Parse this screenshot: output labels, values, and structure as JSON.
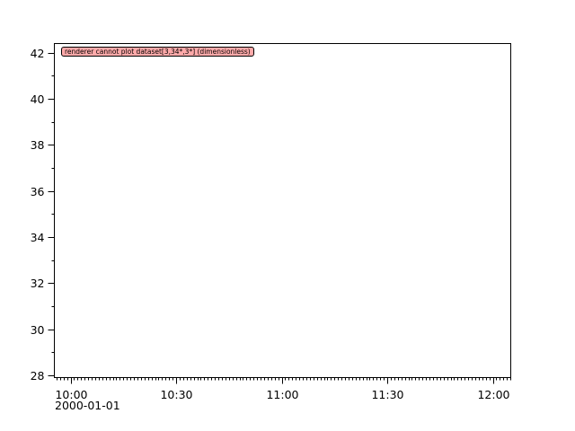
{
  "chart_data": {
    "type": "line",
    "series": [],
    "message": "renderer cannot plot dataset[3,34*,3*] (dimensionless)",
    "xaxis": {
      "range": [
        "09:55:24",
        "12:05:06"
      ],
      "date_label": "2000-01-01",
      "tick_labels": [
        "10:00",
        "10:30",
        "11:00",
        "11:30",
        "12:00"
      ],
      "tick_minutes": [
        0,
        30,
        60,
        90,
        120
      ],
      "minor_step_minutes": 1
    },
    "yaxis": {
      "range": [
        27.9,
        42.4
      ],
      "tick_labels": [
        "28",
        "30",
        "32",
        "34",
        "36",
        "38",
        "40",
        "42"
      ],
      "ticks": [
        28,
        30,
        32,
        34,
        36,
        38,
        40,
        42
      ],
      "minor_step": 1
    },
    "grid": false,
    "colors": {
      "message_bg": "#ffaaaa",
      "axis": "#000000"
    }
  }
}
